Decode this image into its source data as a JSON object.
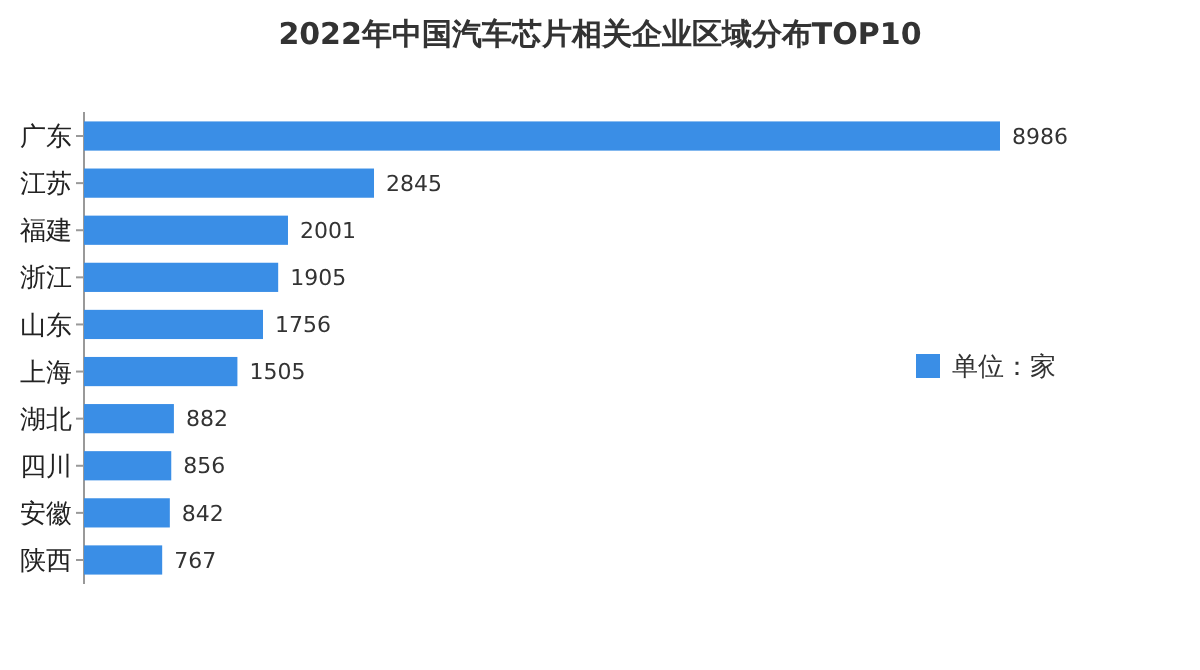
{
  "chart_data": {
    "type": "bar",
    "title": "2022年中国汽车芯片相关企业区域分布TOP10",
    "orientation": "horizontal",
    "categories": [
      "广东",
      "江苏",
      "福建",
      "浙江",
      "山东",
      "上海",
      "湖北",
      "四川",
      "安徽",
      "陕西"
    ],
    "series": [
      {
        "name": "单位：家",
        "color": "#3a8ee6",
        "values": [
          8986,
          2845,
          2001,
          1905,
          1756,
          1505,
          882,
          856,
          842,
          767
        ]
      }
    ],
    "data_labels": true,
    "legend": "right"
  }
}
